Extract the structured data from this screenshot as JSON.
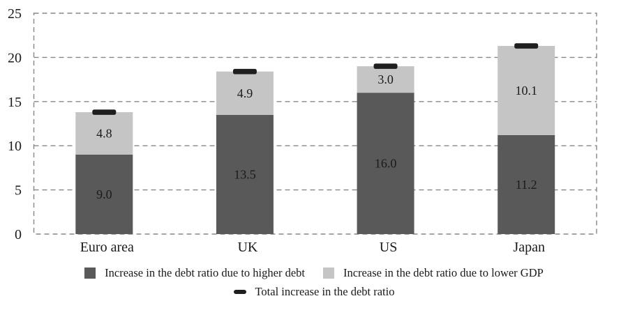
{
  "chart_data": {
    "type": "bar",
    "stacked": true,
    "title": "",
    "categories": [
      "Euro area",
      "UK",
      "US",
      "Japan"
    ],
    "series": [
      {
        "name": "Increase in the debt ratio due to higher debt",
        "values": [
          9.0,
          13.5,
          16.0,
          11.2
        ],
        "color": "#595959",
        "label_color": "#ffffff"
      },
      {
        "name": "Increase in the debt ratio due to lower GDP",
        "values": [
          4.8,
          4.9,
          3.0,
          10.1
        ],
        "color": "#c5c5c5",
        "label_color": "#262626"
      }
    ],
    "totals_marker": {
      "name": "Total increase in the debt ratio",
      "values": [
        13.8,
        18.4,
        19.0,
        21.3
      ],
      "color": "#1f1f1f"
    },
    "ylim": [
      0,
      25
    ],
    "yticks": [
      0,
      5,
      10,
      15,
      20,
      25
    ],
    "grid": "horizontal-dashed",
    "plot_border": "dashed",
    "legend_position": "bottom",
    "value_label_format": "0.0",
    "colors": {
      "grid_line": "#878787",
      "text": "#1a1a1a",
      "background": "#ffffff"
    }
  },
  "legend": {
    "items": [
      {
        "label": "Increase in the debt ratio due to higher debt",
        "swatch": "square-dark"
      },
      {
        "label": "Increase in the debt ratio due to lower GDP",
        "swatch": "square-light"
      },
      {
        "label": "Total increase in the debt ratio",
        "swatch": "dash-black"
      }
    ]
  }
}
